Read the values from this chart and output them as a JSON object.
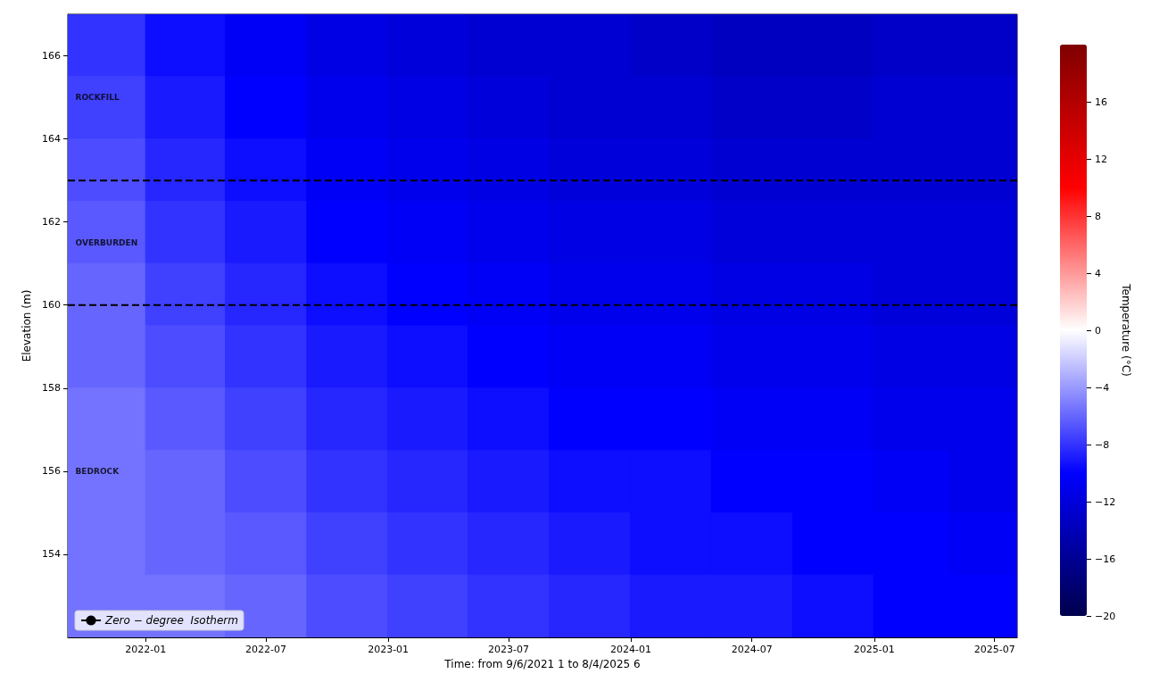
{
  "chart_data": {
    "type": "heatmap",
    "xlabel": "Time: from 9/6/2021 1 to 8/4/2025 6",
    "ylabel": "Elevation (m)",
    "clabel": "Temperature (°C)",
    "x": [
      "2021-11-03",
      "2022-03-01",
      "2022-07-01",
      "2022-11-01",
      "2023-03-01",
      "2023-07-01",
      "2023-11-01",
      "2024-03-01",
      "2024-07-01",
      "2024-11-01",
      "2025-03-01",
      "2025-06-18"
    ],
    "y": [
      166.25,
      164.75,
      163.25,
      161.75,
      160.25,
      158.75,
      157.25,
      155.75,
      154.25,
      152.75
    ],
    "cells": [
      [
        -8,
        -9.5,
        -10.5,
        -11.5,
        -12,
        -12.5,
        -12.5,
        -13,
        -13.5,
        -13.5,
        -13,
        -13
      ],
      [
        -7.5,
        -9,
        -10,
        -11,
        -11.5,
        -12,
        -12.5,
        -12.5,
        -13,
        -13,
        -12.5,
        -12.5
      ],
      [
        -7,
        -8.5,
        -9.5,
        -10.5,
        -11,
        -11.5,
        -12,
        -12,
        -12.5,
        -12.5,
        -12.5,
        -12.5
      ],
      [
        -6.5,
        -8,
        -9,
        -10,
        -10.5,
        -11,
        -11.5,
        -11.5,
        -12,
        -12,
        -12,
        -12
      ],
      [
        -6,
        -7.5,
        -8.5,
        -9.5,
        -10,
        -10.5,
        -11,
        -11,
        -11.5,
        -11.5,
        -12,
        -12
      ],
      [
        -6,
        -7,
        -8,
        -9,
        -9.5,
        -10,
        -10.5,
        -10.5,
        -11,
        -11,
        -11.5,
        -11.5
      ],
      [
        -5.5,
        -6.5,
        -7.5,
        -8.5,
        -9,
        -9.5,
        -10,
        -10,
        -10.5,
        -10.5,
        -11,
        -11
      ],
      [
        -5.5,
        -6,
        -7,
        -8,
        -8.5,
        -9,
        -9.5,
        -9.5,
        -10,
        -10,
        -10.5,
        -11
      ],
      [
        -5.5,
        -6,
        -6.5,
        -7.5,
        -8,
        -8.5,
        -9,
        -9.5,
        -9.5,
        -10,
        -10,
        -10.5
      ],
      [
        -5.5,
        -5.5,
        -6,
        -7,
        -7.5,
        -8,
        -8.5,
        -9,
        -9,
        -9.5,
        -10,
        -10
      ]
    ],
    "series": [
      {
        "name": "Zero − degree  Isotherm",
        "type": "line",
        "color": "#000000",
        "values": [
          null,
          null,
          null,
          null,
          null,
          null,
          null,
          null,
          null,
          null,
          null,
          null
        ]
      }
    ],
    "xlim": [
      "2021-09-06",
      "2025-08-04"
    ],
    "xticks": [
      "2022-01",
      "2022-07",
      "2023-01",
      "2023-07",
      "2024-01",
      "2024-07",
      "2025-01",
      "2025-07"
    ],
    "ylim": [
      152,
      167
    ],
    "yticks": [
      154,
      156,
      158,
      160,
      162,
      164,
      166
    ],
    "clim": [
      -20,
      20
    ],
    "cticks": [
      -20,
      -16,
      -12,
      -8,
      -4,
      0,
      4,
      8,
      12,
      16
    ],
    "ref_lines": [
      {
        "axis": "y",
        "value": 163,
        "color": "#000000",
        "line_style": "dashed"
      },
      {
        "axis": "y",
        "value": 160,
        "color": "#000000",
        "line_style": "dashed"
      }
    ],
    "annotations": [
      "ROCKFILL",
      "OVERBURDEN",
      "BEDROCK"
    ],
    "legend": "bottom left"
  }
}
